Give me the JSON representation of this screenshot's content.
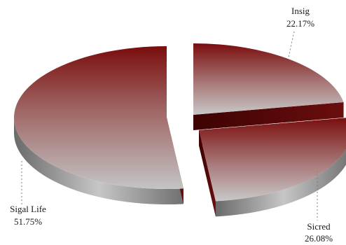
{
  "chart_data": {
    "type": "pie",
    "style": "3d-exploded",
    "title": "",
    "slices": [
      {
        "label": "Sigal Life",
        "percent_label": "51.75%",
        "value": 51.75
      },
      {
        "label": "Insig",
        "percent_label": "22.17%",
        "value": 22.17
      },
      {
        "label": "Sicred",
        "percent_label": "26.08%",
        "value": 26.08
      }
    ],
    "colors": {
      "top_dark": "#7a0d0d",
      "top_light": "#c4c4c4",
      "side_dark": "#6a6a6a",
      "side_light": "#c6c6c6",
      "wall_dark": "#3d0202",
      "wall_mid": "#6a0e0e"
    }
  }
}
